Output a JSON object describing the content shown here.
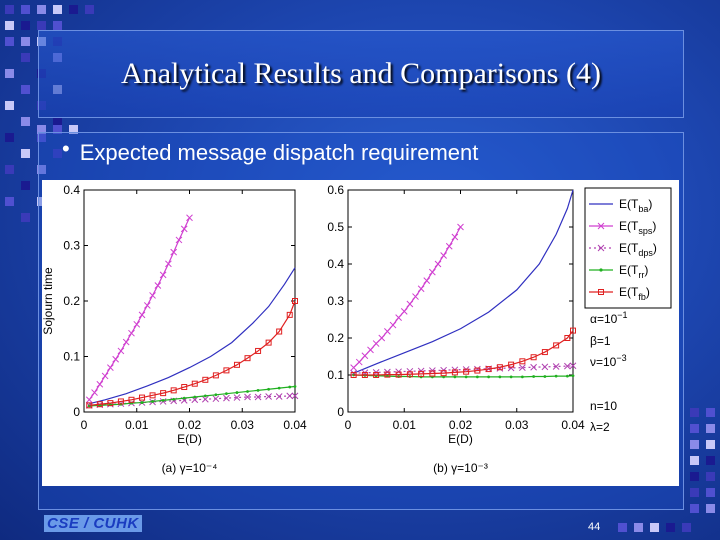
{
  "slide": {
    "title": "Analytical Results and Comparisons (4)",
    "bullet": "Expected message dispatch requirement",
    "footer_logo": "CSE / CUHK",
    "page_number": "44"
  },
  "colors": {
    "background": "#1d46b0",
    "E_Tba": "#3030c0",
    "E_Tsps": "#d040d0",
    "E_Tdps": "#b040b0",
    "E_Trr": "#20b020",
    "E_Tfb": "#e02020"
  },
  "chart_data": [
    {
      "type": "line",
      "caption": "(a) γ=10⁻⁴",
      "xlabel": "E(D)",
      "ylabel": "Sojourn time",
      "xlim": [
        0,
        0.04
      ],
      "ylim": [
        0,
        0.4
      ],
      "xticks": [
        "0",
        "0.01",
        "0.02",
        "0.03",
        "0.04"
      ],
      "yticks": [
        "0",
        "0.1",
        "0.2",
        "0.3",
        "0.4"
      ],
      "series": [
        {
          "name": "E(Tba)",
          "marker": "none",
          "x": [
            0.001,
            0.004,
            0.008,
            0.012,
            0.016,
            0.02,
            0.024,
            0.028,
            0.032,
            0.035,
            0.038,
            0.04
          ],
          "y": [
            0.015,
            0.022,
            0.033,
            0.047,
            0.062,
            0.08,
            0.1,
            0.125,
            0.16,
            0.19,
            0.23,
            0.26
          ]
        },
        {
          "name": "E(Tsps)",
          "marker": "x",
          "x": [
            0.001,
            0.002,
            0.003,
            0.004,
            0.005,
            0.006,
            0.007,
            0.008,
            0.009,
            0.01,
            0.011,
            0.012,
            0.013,
            0.014,
            0.015,
            0.016,
            0.017,
            0.018,
            0.019,
            0.02
          ],
          "y": [
            0.022,
            0.035,
            0.05,
            0.065,
            0.08,
            0.095,
            0.11,
            0.126,
            0.142,
            0.158,
            0.175,
            0.192,
            0.21,
            0.228,
            0.247,
            0.267,
            0.288,
            0.31,
            0.33,
            0.35
          ]
        },
        {
          "name": "E(Tdps)",
          "marker": "x",
          "x": [
            0.001,
            0.003,
            0.005,
            0.007,
            0.009,
            0.011,
            0.013,
            0.015,
            0.017,
            0.019,
            0.021,
            0.023,
            0.025,
            0.027,
            0.029,
            0.031,
            0.033,
            0.035,
            0.037,
            0.039,
            0.04
          ],
          "y": [
            0.012,
            0.013,
            0.014,
            0.015,
            0.016,
            0.017,
            0.018,
            0.019,
            0.02,
            0.021,
            0.022,
            0.023,
            0.024,
            0.025,
            0.026,
            0.027,
            0.027,
            0.028,
            0.028,
            0.029,
            0.029
          ]
        },
        {
          "name": "E(Trr)",
          "marker": "dot",
          "x": [
            0.001,
            0.003,
            0.005,
            0.007,
            0.009,
            0.011,
            0.013,
            0.015,
            0.017,
            0.019,
            0.021,
            0.023,
            0.025,
            0.027,
            0.029,
            0.031,
            0.033,
            0.035,
            0.037,
            0.039,
            0.04
          ],
          "y": [
            0.011,
            0.012,
            0.013,
            0.014,
            0.016,
            0.017,
            0.019,
            0.021,
            0.023,
            0.025,
            0.027,
            0.029,
            0.031,
            0.033,
            0.035,
            0.037,
            0.039,
            0.041,
            0.043,
            0.045,
            0.046
          ]
        },
        {
          "name": "E(Tfb)",
          "marker": "square",
          "x": [
            0.001,
            0.003,
            0.005,
            0.007,
            0.009,
            0.011,
            0.013,
            0.015,
            0.017,
            0.019,
            0.021,
            0.023,
            0.025,
            0.027,
            0.029,
            0.031,
            0.033,
            0.035,
            0.037,
            0.039,
            0.04
          ],
          "y": [
            0.012,
            0.014,
            0.016,
            0.019,
            0.022,
            0.026,
            0.03,
            0.034,
            0.039,
            0.045,
            0.051,
            0.058,
            0.066,
            0.075,
            0.085,
            0.097,
            0.11,
            0.125,
            0.145,
            0.175,
            0.2
          ]
        }
      ]
    },
    {
      "type": "line",
      "caption": "(b) γ=10⁻³",
      "xlabel": "E(D)",
      "ylabel": "",
      "xlim": [
        0,
        0.04
      ],
      "ylim": [
        0,
        0.6
      ],
      "xticks": [
        "0",
        "0.01",
        "0.02",
        "0.03",
        "0.04"
      ],
      "yticks": [
        "0",
        "0.1",
        "0.2",
        "0.3",
        "0.4",
        "0.5",
        "0.6"
      ],
      "series": [
        {
          "name": "E(Tba)",
          "marker": "none",
          "x": [
            0.001,
            0.005,
            0.01,
            0.015,
            0.02,
            0.025,
            0.03,
            0.034,
            0.037,
            0.039,
            0.04
          ],
          "y": [
            0.105,
            0.13,
            0.16,
            0.19,
            0.225,
            0.27,
            0.33,
            0.4,
            0.48,
            0.55,
            0.6
          ]
        },
        {
          "name": "E(Tsps)",
          "marker": "x",
          "x": [
            0.001,
            0.002,
            0.003,
            0.004,
            0.005,
            0.006,
            0.007,
            0.008,
            0.009,
            0.01,
            0.011,
            0.012,
            0.013,
            0.014,
            0.015,
            0.016,
            0.017,
            0.018,
            0.019,
            0.02
          ],
          "y": [
            0.12,
            0.135,
            0.152,
            0.168,
            0.185,
            0.2,
            0.218,
            0.235,
            0.255,
            0.272,
            0.292,
            0.312,
            0.333,
            0.355,
            0.378,
            0.4,
            0.423,
            0.448,
            0.473,
            0.5
          ]
        },
        {
          "name": "E(Tdps)",
          "marker": "x",
          "x": [
            0.001,
            0.003,
            0.005,
            0.007,
            0.009,
            0.011,
            0.013,
            0.015,
            0.017,
            0.019,
            0.021,
            0.023,
            0.025,
            0.027,
            0.029,
            0.031,
            0.033,
            0.035,
            0.037,
            0.039,
            0.04
          ],
          "y": [
            0.105,
            0.106,
            0.107,
            0.108,
            0.109,
            0.11,
            0.111,
            0.112,
            0.113,
            0.114,
            0.115,
            0.116,
            0.117,
            0.118,
            0.119,
            0.12,
            0.121,
            0.122,
            0.123,
            0.124,
            0.125
          ]
        },
        {
          "name": "E(Trr)",
          "marker": "dot",
          "x": [
            0.001,
            0.003,
            0.005,
            0.007,
            0.009,
            0.011,
            0.013,
            0.015,
            0.017,
            0.019,
            0.021,
            0.023,
            0.025,
            0.027,
            0.029,
            0.031,
            0.033,
            0.035,
            0.037,
            0.039,
            0.04
          ],
          "y": [
            0.1,
            0.099,
            0.098,
            0.097,
            0.096,
            0.096,
            0.095,
            0.095,
            0.095,
            0.095,
            0.095,
            0.095,
            0.095,
            0.095,
            0.095,
            0.095,
            0.096,
            0.096,
            0.097,
            0.097,
            0.098
          ]
        },
        {
          "name": "E(Tfb)",
          "marker": "square",
          "x": [
            0.001,
            0.003,
            0.005,
            0.007,
            0.009,
            0.011,
            0.013,
            0.015,
            0.017,
            0.019,
            0.021,
            0.023,
            0.025,
            0.027,
            0.029,
            0.031,
            0.033,
            0.035,
            0.037,
            0.039,
            0.04
          ],
          "y": [
            0.1,
            0.1,
            0.1,
            0.101,
            0.101,
            0.102,
            0.103,
            0.104,
            0.105,
            0.107,
            0.109,
            0.112,
            0.116,
            0.121,
            0.128,
            0.137,
            0.148,
            0.162,
            0.18,
            0.2,
            0.22
          ]
        }
      ]
    }
  ],
  "legend": {
    "entries": [
      {
        "base": "E(T",
        "sub": "ba",
        "close": ")"
      },
      {
        "base": "E(T",
        "sub": "sps",
        "close": ")"
      },
      {
        "base": "E(T",
        "sub": "dps",
        "close": ")"
      },
      {
        "base": "E(T",
        "sub": "rr",
        "close": ")"
      },
      {
        "base": "E(T",
        "sub": "fb",
        "close": ")"
      }
    ],
    "placement": "top-right"
  },
  "parameters": {
    "alpha": "α=10",
    "alpha_exp": "−1",
    "beta": "β=1",
    "nu": "ν=10",
    "nu_exp": "−3",
    "n": "n=10",
    "lambda": "λ=2"
  }
}
